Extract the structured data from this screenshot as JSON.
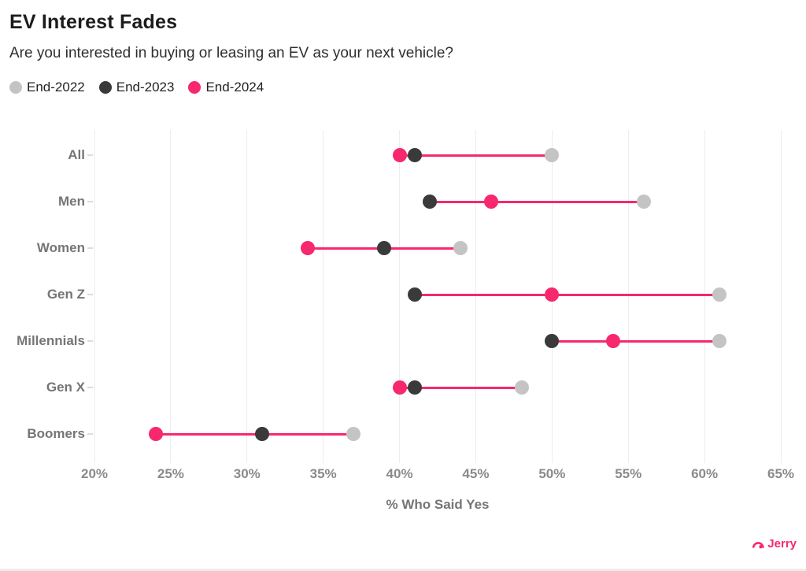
{
  "header": {
    "title": "EV Interest Fades",
    "subtitle": "Are you interested in buying or leasing an EV as your next vehicle?"
  },
  "legend": [
    {
      "label": "End-2022",
      "color": "#c4c4c4"
    },
    {
      "label": "End-2023",
      "color": "#3a3a3a"
    },
    {
      "label": "End-2024",
      "color": "#f7286e"
    }
  ],
  "chart_data": {
    "type": "dumbbell",
    "categories": [
      "All",
      "Men",
      "Women",
      "Gen Z",
      "Millennials",
      "Gen X",
      "Boomers"
    ],
    "series": [
      {
        "name": "End-2022",
        "color": "#c4c4c4",
        "values": [
          50,
          56,
          44,
          61,
          61,
          48,
          37
        ]
      },
      {
        "name": "End-2023",
        "color": "#3a3a3a",
        "values": [
          41,
          42,
          39,
          41,
          50,
          41,
          31
        ]
      },
      {
        "name": "End-2024",
        "color": "#f7286e",
        "values": [
          40,
          46,
          34,
          50,
          54,
          40,
          24
        ]
      }
    ],
    "title": "EV Interest Fades",
    "subtitle": "Are you interested in buying or leasing an EV as your next vehicle?",
    "xlabel": "% Who Said Yes",
    "ylabel": "",
    "xlim": [
      20,
      65
    ],
    "xticks": [
      20,
      25,
      30,
      35,
      40,
      45,
      50,
      55,
      60,
      65
    ],
    "tick_suffix": "%",
    "grid": "vertical",
    "legend_position": "top-left",
    "connector_color": "#f7286e"
  },
  "footer": {
    "brand": "Jerry",
    "brand_color": "#f7286e"
  },
  "colors": {
    "background": "#ffffff",
    "gridline": "#ededed",
    "title_text": "#1c1c1c",
    "axis_text": "#757575",
    "accent_pink": "#f7286e"
  }
}
